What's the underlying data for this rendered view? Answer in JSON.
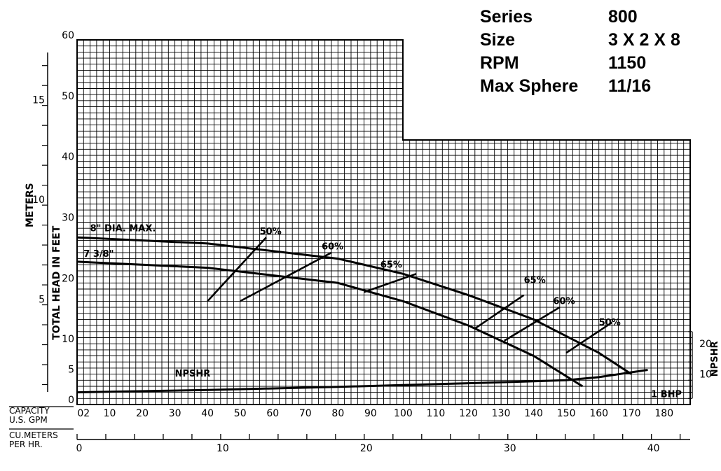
{
  "info_box": {
    "rows": [
      {
        "label": "Series",
        "value": "800"
      },
      {
        "label": "Size",
        "value": "3 X 2 X 8"
      },
      {
        "label": "RPM",
        "value": "1150"
      },
      {
        "label": "Max Sphere",
        "value": "11/16"
      }
    ]
  },
  "chart_data": {
    "type": "line",
    "title": "",
    "xlabel": "CAPACITY U.S. GPM",
    "ylabel": "TOTAL HEAD IN FEET",
    "x2label": "CU.METERS PER HR.",
    "y2label": "METERS",
    "npsh_label": "NPSHR",
    "xlim": [
      0,
      188
    ],
    "ylim": [
      0,
      60
    ],
    "x_ticks": [
      "02",
      "10",
      "20",
      "30",
      "40",
      "50",
      "60",
      "70",
      "80",
      "90",
      "100",
      "110",
      "120",
      "130",
      "140",
      "150",
      "160",
      "170",
      "180"
    ],
    "y_ticks": [
      "0",
      "5",
      "10",
      "20",
      "30",
      "40",
      "50",
      "60"
    ],
    "meters_ticks": [
      "5",
      "10",
      "15"
    ],
    "cu_meters_ticks": [
      "0",
      "10",
      "20",
      "30",
      "40"
    ],
    "npsh_ticks": [
      "10",
      "20"
    ],
    "series": [
      {
        "name": "8\" DIA. MAX.",
        "x": [
          0,
          40,
          80,
          100,
          120,
          140,
          160,
          170
        ],
        "y": [
          27.5,
          26.5,
          24,
          21.5,
          18,
          14,
          8.5,
          5
        ]
      },
      {
        "name": "7 3/8\"",
        "x": [
          0,
          40,
          80,
          100,
          120,
          140,
          155
        ],
        "y": [
          23.5,
          22.5,
          20,
          17,
          13,
          8,
          3
        ]
      },
      {
        "name": "NPSHR",
        "x": [
          0,
          40,
          80,
          120,
          150,
          160,
          175
        ],
        "y": [
          2,
          2.4,
          2.9,
          3.5,
          4,
          4.5,
          5.7
        ]
      }
    ],
    "efficiency_lines": [
      {
        "label": "50%",
        "points": [
          [
            40,
            17
          ],
          [
            58,
            27.5
          ]
        ]
      },
      {
        "label": "60%",
        "points": [
          [
            50,
            17
          ],
          [
            78,
            25
          ]
        ]
      },
      {
        "label": "65%",
        "points": [
          [
            88,
            18.5
          ],
          [
            104,
            21.5
          ]
        ]
      },
      {
        "label": "65%",
        "points": [
          [
            122,
            12.5
          ],
          [
            137,
            18
          ]
        ]
      },
      {
        "label": "60%",
        "points": [
          [
            131,
            10.5
          ],
          [
            148,
            16
          ]
        ]
      },
      {
        "label": "50%",
        "points": [
          [
            150,
            8.5
          ],
          [
            164,
            13.5
          ]
        ]
      }
    ],
    "efficiency_labels": [
      {
        "text": "50%",
        "at": [
          56,
          28
        ]
      },
      {
        "text": "60%",
        "at": [
          75,
          25.5
        ]
      },
      {
        "text": "65%",
        "at": [
          93,
          22.5
        ]
      },
      {
        "text": "65%",
        "at": [
          137,
          20
        ]
      },
      {
        "text": "60%",
        "at": [
          146,
          16.5
        ]
      },
      {
        "text": "50%",
        "at": [
          160,
          13
        ]
      }
    ],
    "series_labels": [
      {
        "text": "8\" DIA. MAX.",
        "at": [
          4,
          28.5
        ]
      },
      {
        "text": "7 3/8\"",
        "at": [
          2,
          24.3
        ]
      },
      {
        "text": "NPSHR",
        "at": [
          30,
          4.6
        ]
      },
      {
        "text": "1 BHP",
        "at": [
          176,
          1.2
        ]
      }
    ]
  }
}
